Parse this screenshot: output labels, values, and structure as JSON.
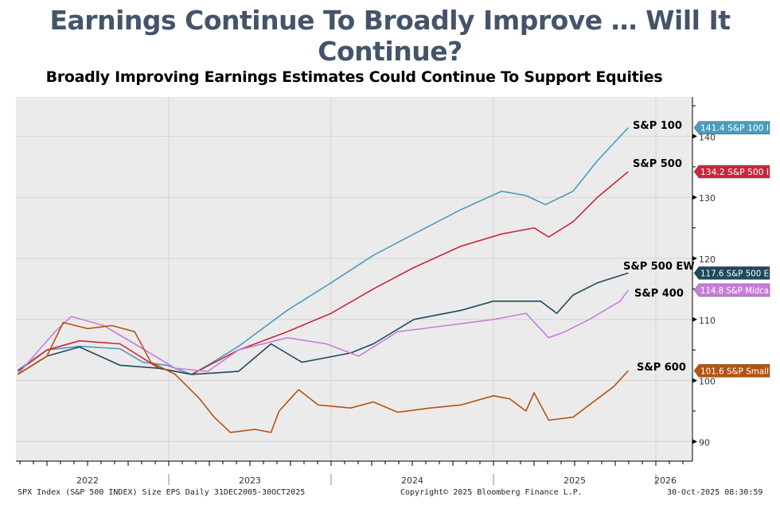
{
  "header": {
    "title": "Earnings Continue To Broadly Improve … Will It Continue?"
  },
  "footer": {
    "source": "SPX Index (S&P 500 INDEX) Size EPS Daily 31DEC2005-30OCT2025",
    "copyright": "Copyright© 2025 Bloomberg Finance L.P.",
    "timestamp": "30-Oct-2025 08:30:59"
  },
  "chart_data": {
    "type": "line",
    "title": "Broadly Improving Earnings Estimates Could Continue To Support Equities",
    "xlabel": "",
    "ylabel": "",
    "xlim": [
      2022.06,
      2026.23
    ],
    "ylim": [
      87,
      146
    ],
    "x_ticks": [
      "2022",
      "2023",
      "2024",
      "2025",
      "2026"
    ],
    "y_ticks": [
      90,
      100,
      110,
      120,
      130,
      140
    ],
    "grid": true,
    "series": [
      {
        "name": "S&P 100",
        "tag": "141.4 S&P 100 I",
        "color": "#4a9bbf",
        "last": 141.4,
        "points": [
          [
            2022.07,
            101.7
          ],
          [
            2022.25,
            105
          ],
          [
            2022.45,
            105.6
          ],
          [
            2022.7,
            105.2
          ],
          [
            2022.84,
            103
          ],
          [
            2022.99,
            102.5
          ],
          [
            2023.14,
            101
          ],
          [
            2023.24,
            102.5
          ],
          [
            2023.43,
            105.6
          ],
          [
            2023.73,
            111.5
          ],
          [
            2024.0,
            116
          ],
          [
            2024.26,
            120.5
          ],
          [
            2024.51,
            124
          ],
          [
            2024.8,
            128
          ],
          [
            2025.05,
            131
          ],
          [
            2025.2,
            130.3
          ],
          [
            2025.32,
            128.8
          ],
          [
            2025.49,
            131
          ],
          [
            2025.64,
            136
          ],
          [
            2025.83,
            141.4
          ]
        ]
      },
      {
        "name": "S&P 500",
        "tag": "134.2 S&P 500 I",
        "color": "#c8283c",
        "last": 134.2,
        "points": [
          [
            2022.07,
            101.5
          ],
          [
            2022.25,
            105
          ],
          [
            2022.45,
            106.5
          ],
          [
            2022.7,
            106
          ],
          [
            2022.94,
            102
          ],
          [
            2023.14,
            101
          ],
          [
            2023.43,
            105
          ],
          [
            2023.73,
            108
          ],
          [
            2024.0,
            111
          ],
          [
            2024.26,
            115
          ],
          [
            2024.51,
            118.5
          ],
          [
            2024.8,
            122
          ],
          [
            2025.05,
            124
          ],
          [
            2025.25,
            125
          ],
          [
            2025.34,
            123.5
          ],
          [
            2025.49,
            126
          ],
          [
            2025.64,
            130
          ],
          [
            2025.83,
            134.2
          ]
        ]
      },
      {
        "name": "S&P 500 EW",
        "tag": "117.6 S&P 500 E",
        "color": "#1e4a5a",
        "last": 117.6,
        "points": [
          [
            2022.07,
            101
          ],
          [
            2022.25,
            104
          ],
          [
            2022.45,
            105.5
          ],
          [
            2022.7,
            102.5
          ],
          [
            2022.94,
            102
          ],
          [
            2023.14,
            101
          ],
          [
            2023.43,
            101.5
          ],
          [
            2023.63,
            106
          ],
          [
            2023.82,
            103
          ],
          [
            2024.12,
            104.5
          ],
          [
            2024.26,
            106
          ],
          [
            2024.51,
            110
          ],
          [
            2024.8,
            111.5
          ],
          [
            2025.0,
            113
          ],
          [
            2025.29,
            113
          ],
          [
            2025.39,
            111
          ],
          [
            2025.49,
            114
          ],
          [
            2025.64,
            116
          ],
          [
            2025.83,
            117.6
          ]
        ]
      },
      {
        "name": "S&P 400",
        "tag": "114.8 S&P Midca",
        "color": "#c77ddb",
        "last": 114.8,
        "points": [
          [
            2022.07,
            101
          ],
          [
            2022.3,
            108
          ],
          [
            2022.4,
            110.5
          ],
          [
            2022.6,
            109
          ],
          [
            2022.79,
            106
          ],
          [
            2023.04,
            102
          ],
          [
            2023.24,
            101.5
          ],
          [
            2023.43,
            105
          ],
          [
            2023.73,
            107
          ],
          [
            2023.97,
            106
          ],
          [
            2024.17,
            104
          ],
          [
            2024.41,
            108
          ],
          [
            2024.71,
            109
          ],
          [
            2025.0,
            110
          ],
          [
            2025.2,
            111
          ],
          [
            2025.34,
            107
          ],
          [
            2025.44,
            108
          ],
          [
            2025.59,
            110
          ],
          [
            2025.78,
            113
          ],
          [
            2025.83,
            114.8
          ]
        ]
      },
      {
        "name": "S&P 600",
        "tag": "101.6 S&P Small",
        "color": "#b8520f",
        "last": 101.6,
        "points": [
          [
            2022.07,
            101
          ],
          [
            2022.25,
            104
          ],
          [
            2022.35,
            109.5
          ],
          [
            2022.5,
            108.5
          ],
          [
            2022.65,
            109
          ],
          [
            2022.79,
            108
          ],
          [
            2022.89,
            103
          ],
          [
            2023.04,
            101
          ],
          [
            2023.19,
            97
          ],
          [
            2023.28,
            94
          ],
          [
            2023.38,
            91.5
          ],
          [
            2023.53,
            92
          ],
          [
            2023.63,
            91.5
          ],
          [
            2023.68,
            95
          ],
          [
            2023.8,
            98.5
          ],
          [
            2023.92,
            96
          ],
          [
            2024.12,
            95.5
          ],
          [
            2024.26,
            96.5
          ],
          [
            2024.41,
            94.8
          ],
          [
            2024.61,
            95.5
          ],
          [
            2024.8,
            96
          ],
          [
            2025.0,
            97.5
          ],
          [
            2025.1,
            97
          ],
          [
            2025.2,
            95
          ],
          [
            2025.25,
            98
          ],
          [
            2025.34,
            93.5
          ],
          [
            2025.49,
            94
          ],
          [
            2025.59,
            96
          ],
          [
            2025.74,
            99
          ],
          [
            2025.83,
            101.6
          ]
        ]
      }
    ]
  }
}
